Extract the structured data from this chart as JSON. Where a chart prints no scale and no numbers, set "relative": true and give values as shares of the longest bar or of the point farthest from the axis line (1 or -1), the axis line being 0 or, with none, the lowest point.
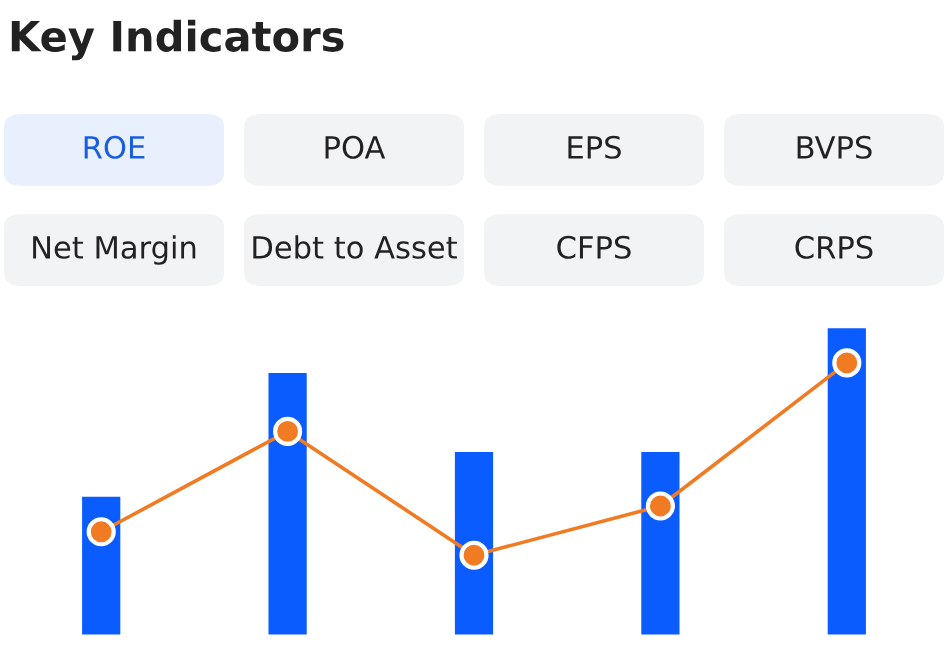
{
  "chart_data": [
    {
      "type": "bar",
      "title": "Key Indicators",
      "relative": true,
      "categories": [
        null,
        null,
        null,
        null,
        null
      ],
      "annotations": [
        "ROE",
        "POA",
        "EPS",
        "BVPS",
        "Net Margin",
        "Debt to Asset",
        "CFPS",
        "CRPS"
      ],
      "series": [
        {
          "color": "#0a5cff",
          "values": [
            0.455,
            0.855,
            0.6,
            0.6,
            1.0
          ]
        }
      ]
    },
    {
      "type": "line",
      "relative": true,
      "categories": [
        null,
        null,
        null,
        null,
        null
      ],
      "marker": "circle",
      "line_style": "solid",
      "series": [
        {
          "color": "#f07b22",
          "values": [
            0.122,
            0.644,
            0,
            0.256,
            1.0
          ]
        }
      ]
    }
  ]
}
